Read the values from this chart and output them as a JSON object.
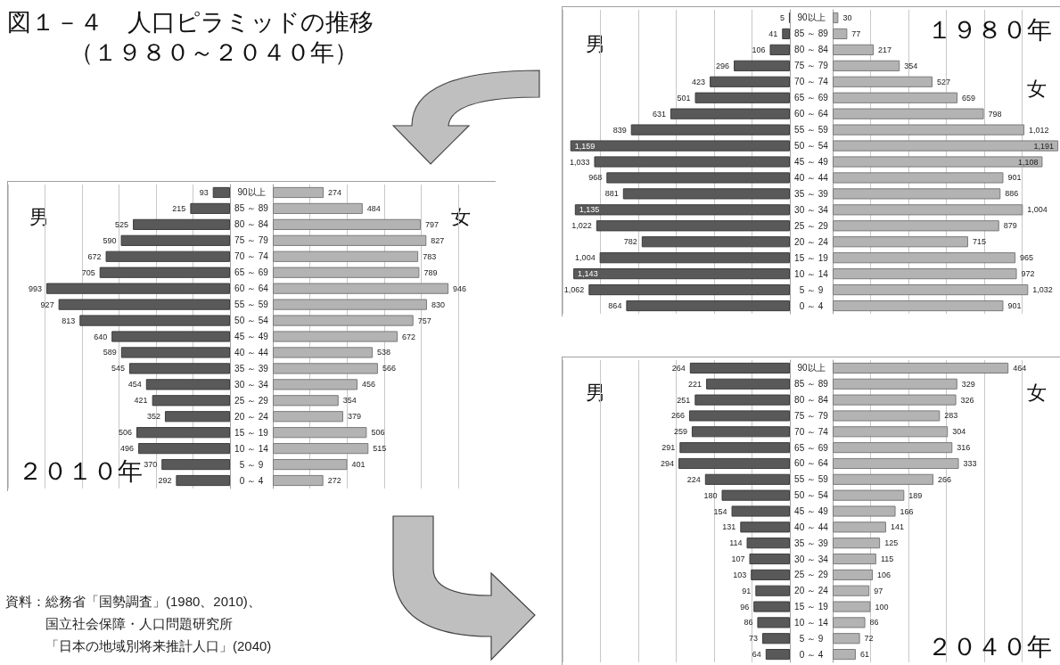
{
  "chart_data": [
    {
      "type": "other",
      "title": "図１－４　人口ピラミッドの推移",
      "subtitle": "（１９８０～２０４０年）",
      "annotations": [
        "資料：総務省「国勢調査」(1980、2010)、",
        "国立社会保障・人口問題研究所",
        "「日本の地域別将来推計人口」(2040)"
      ]
    },
    {
      "type": "bar",
      "orientation": "horizontal",
      "categories": [
        "90以上",
        "85 ～ 89",
        "80 ～ 84",
        "75 ～ 79",
        "70 ～ 74",
        "65 ～ 69",
        "60 ～ 64",
        "55 ～ 59",
        "50 ～ 54",
        "45 ～ 49",
        "40 ～ 44",
        "35 ～ 39",
        "30 ～ 34",
        "25 ～ 29",
        "20 ～ 24",
        "15 ～ 19",
        "10 ～ 14",
        "5 ～ 9",
        "0 ～ 4"
      ],
      "series": [
        {
          "name": "男",
          "color": "#595959",
          "values": [
            5,
            41,
            106,
            296,
            423,
            501,
            631,
            839,
            1159,
            1033,
            968,
            881,
            1135,
            1022,
            782,
            1004,
            1143,
            1062,
            864
          ],
          "value_labels": [
            "5",
            "41",
            "106",
            "296",
            "423",
            "501",
            "631",
            "839",
            "1,159",
            "1,033",
            "968",
            "881",
            "1,135",
            "1,022",
            "782",
            "1,004",
            "1,143",
            "1,062",
            "864"
          ]
        }
      ],
      "xlim": [
        1200,
        0
      ],
      "grid": "x",
      "tick_labels": "y"
    },
    {
      "type": "bar",
      "orientation": "horizontal",
      "title": "１９８０年",
      "categories": [
        null,
        null,
        null,
        null,
        null,
        null,
        null,
        null,
        null,
        null,
        null,
        null,
        null,
        null,
        null,
        null,
        null,
        null,
        null
      ],
      "series": [
        {
          "name": "女",
          "color": "#b3b3b3",
          "values": [
            30,
            77,
            217,
            354,
            527,
            659,
            798,
            1012,
            1191,
            1108,
            901,
            886,
            1004,
            879,
            715,
            965,
            972,
            1032,
            901
          ],
          "value_labels": [
            "30",
            "77",
            "217",
            "354",
            "527",
            "659",
            "798",
            "1,012",
            "1,191",
            "1,108",
            "901",
            "886",
            "1,004",
            "879",
            "715",
            "965",
            "972",
            "1,032",
            "901"
          ]
        }
      ],
      "xlim": [
        0,
        1200
      ],
      "grid": "x",
      "tick_labels": false
    },
    {
      "type": "bar",
      "orientation": "horizontal",
      "title": "２０１０年",
      "categories": [
        "90以上",
        "85 ～ 89",
        "80 ～ 84",
        "75 ～ 79",
        "70 ～ 74",
        "65 ～ 69",
        "60 ～ 64",
        "55 ～ 59",
        "50 ～ 54",
        "45 ～ 49",
        "40 ～ 44",
        "35 ～ 39",
        "30 ～ 34",
        "25 ～ 29",
        "20 ～ 24",
        "15 ～ 19",
        "10 ～ 14",
        "5 ～ 9",
        "0 ～ 4"
      ],
      "series": [
        {
          "name": "男",
          "color": "#595959",
          "values": [
            93,
            215,
            525,
            590,
            672,
            705,
            993,
            927,
            813,
            640,
            589,
            545,
            454,
            421,
            352,
            506,
            496,
            370,
            292
          ]
        }
      ],
      "xlim": [
        1200,
        0
      ],
      "grid": "x",
      "data_labels": true,
      "tick_labels": "y"
    },
    {
      "type": "bar",
      "orientation": "horizontal",
      "categories": [
        null,
        null,
        null,
        null,
        null,
        null,
        null,
        null,
        null,
        null,
        null,
        null,
        null,
        null,
        null,
        null,
        null,
        null,
        null
      ],
      "series": [
        {
          "name": "女",
          "color": "#b3b3b3",
          "values": [
            274,
            484,
            797,
            827,
            783,
            789,
            946,
            830,
            757,
            672,
            538,
            566,
            456,
            354,
            379,
            506,
            515,
            401,
            272
          ]
        }
      ],
      "xlim": [
        0,
        1200
      ],
      "grid": "x",
      "data_labels": true,
      "tick_labels": false
    },
    {
      "type": "bar",
      "orientation": "horizontal",
      "categories": [
        "90以上",
        "85 ～ 89",
        "80 ～ 84",
        "75 ～ 79",
        "70 ～ 74",
        "65 ～ 69",
        "60 ～ 64",
        "55 ～ 59",
        "50 ～ 54",
        "45 ～ 49",
        "40 ～ 44",
        "35 ～ 39",
        "30 ～ 34",
        "25 ～ 29",
        "20 ～ 24",
        "15 ～ 19",
        "10 ～ 14",
        "5 ～ 9",
        "0 ～ 4"
      ],
      "series": [
        {
          "name": "男",
          "color": "#595959",
          "values": [
            264,
            221,
            251,
            266,
            259,
            291,
            294,
            224,
            180,
            154,
            131,
            114,
            107,
            103,
            91,
            96,
            86,
            73,
            64
          ]
        }
      ],
      "xlim": [
        600,
        0
      ],
      "grid": "x",
      "data_labels": true,
      "tick_labels": "y"
    },
    {
      "type": "bar",
      "orientation": "horizontal",
      "title": "２０４０年",
      "categories": [
        null,
        null,
        null,
        null,
        null,
        null,
        null,
        null,
        null,
        null,
        null,
        null,
        null,
        null,
        null,
        null,
        null,
        null,
        null
      ],
      "series": [
        {
          "name": "女",
          "color": "#b3b3b3",
          "values": [
            464,
            329,
            326,
            283,
            304,
            316,
            333,
            266,
            189,
            166,
            141,
            125,
            115,
            106,
            97,
            100,
            86,
            72,
            61
          ]
        }
      ],
      "xlim": [
        0,
        600
      ],
      "grid": "x",
      "data_labels": true,
      "tick_labels": false
    }
  ]
}
